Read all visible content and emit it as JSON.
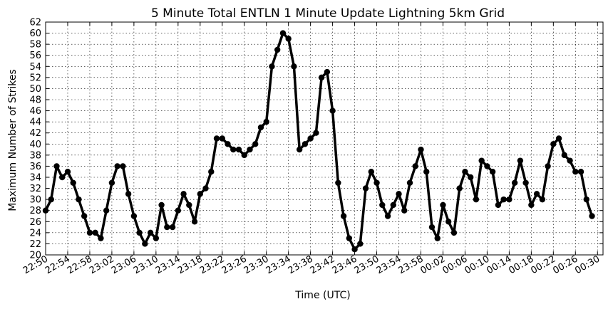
{
  "chart_data": {
    "type": "line",
    "title": "5 Minute Total ENTLN 1 Minute Update Lightning 5km Grid",
    "xlabel": "Time (UTC)",
    "ylabel": "Maximum Number of Strikes",
    "ylim": [
      20,
      62
    ],
    "ytick_step": 2,
    "grid": true,
    "xticks": [
      "22:50",
      "22:54",
      "22:58",
      "23:02",
      "23:06",
      "23:10",
      "23:14",
      "23:18",
      "23:22",
      "23:26",
      "23:30",
      "23:34",
      "23:38",
      "23:42",
      "23:46",
      "23:50",
      "23:54",
      "23:58",
      "00:02",
      "00:06",
      "00:10",
      "00:14",
      "00:18",
      "00:22",
      "00:26",
      "00:30"
    ],
    "xtick_minute_offsets": [
      0,
      4,
      8,
      12,
      16,
      20,
      24,
      28,
      32,
      36,
      40,
      44,
      48,
      52,
      56,
      60,
      64,
      68,
      72,
      76,
      80,
      84,
      88,
      92,
      96,
      100
    ],
    "x_minutes_range": [
      0,
      101
    ],
    "series": [
      {
        "color": "#000000",
        "values": [
          28,
          30,
          36,
          34,
          35,
          33,
          30,
          27,
          24,
          24,
          23,
          28,
          33,
          36,
          36,
          31,
          27,
          24,
          22,
          24,
          23,
          29,
          25,
          25,
          28,
          31,
          29,
          26,
          31,
          32,
          35,
          41,
          41,
          40,
          39,
          39,
          38,
          39,
          40,
          43,
          44,
          54,
          57,
          60,
          59,
          54,
          39,
          40,
          41,
          42,
          52,
          53,
          46,
          33,
          27,
          23,
          21,
          22,
          32,
          35,
          33,
          29,
          27,
          29,
          31,
          28,
          33,
          36,
          39,
          35,
          25,
          23,
          29,
          26,
          24,
          32,
          35,
          34,
          30,
          37,
          36,
          35,
          29,
          30,
          30,
          33,
          37,
          33,
          29,
          31,
          30,
          36,
          40,
          41,
          38,
          37,
          35,
          35,
          30,
          27
        ]
      }
    ]
  }
}
